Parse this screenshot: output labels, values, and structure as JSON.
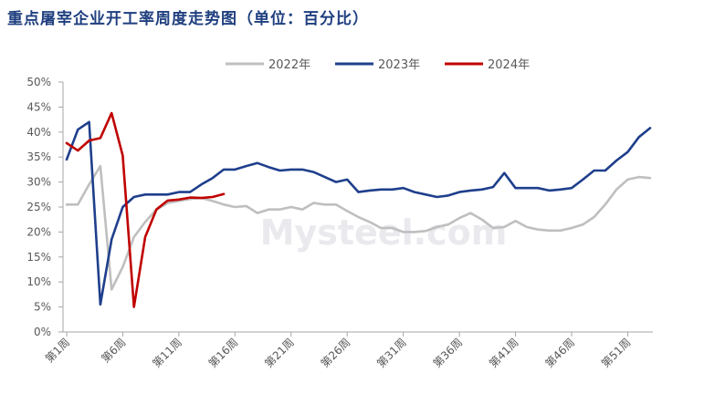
{
  "title": "重点屠宰企业开工率周度走势图（单位：百分比）",
  "watermark": "Mysteel.com",
  "colors": {
    "s2022": "#bfbfbf",
    "s2023": "#1f3f8c",
    "s2024": "#c00000",
    "title": "#1f3f7f",
    "axis": "#595959"
  },
  "chart_data": {
    "type": "line",
    "title": "重点屠宰企业开工率周度走势图（单位：百分比）",
    "xlabel": "",
    "ylabel": "",
    "ylim": [
      0,
      50
    ],
    "y_ticks": [
      "0%",
      "5%",
      "10%",
      "15%",
      "20%",
      "25%",
      "30%",
      "35%",
      "40%",
      "45%",
      "50%"
    ],
    "x_range": [
      1,
      53
    ],
    "x_tick_labels": [
      "第1周",
      "第6周",
      "第11周",
      "第16周",
      "第21周",
      "第26周",
      "第31周",
      "第36周",
      "第41周",
      "第46周",
      "第51周"
    ],
    "x_tick_weeks": [
      1,
      6,
      11,
      16,
      21,
      26,
      31,
      36,
      41,
      46,
      51
    ],
    "legend_position": "top-right",
    "grid": false,
    "series": [
      {
        "name": "2022年",
        "x": [
          1,
          2,
          3,
          4,
          5,
          6,
          7,
          8,
          9,
          10,
          11,
          12,
          13,
          14,
          15,
          16,
          17,
          18,
          19,
          20,
          21,
          22,
          23,
          24,
          25,
          26,
          27,
          28,
          29,
          30,
          31,
          32,
          33,
          34,
          35,
          36,
          37,
          38,
          39,
          40,
          41,
          42,
          43,
          44,
          45,
          46,
          47,
          48,
          49,
          50,
          51,
          52,
          53
        ],
        "values": [
          25.5,
          25.5,
          29.5,
          33.2,
          8.5,
          13.0,
          19.0,
          22.0,
          24.5,
          25.8,
          26.2,
          26.6,
          26.8,
          26.2,
          25.5,
          25.0,
          25.2,
          23.8,
          24.5,
          24.5,
          25.0,
          24.5,
          25.8,
          25.5,
          25.5,
          24.2,
          23.0,
          22.0,
          20.8,
          20.8,
          20.0,
          20.0,
          20.2,
          21.0,
          21.5,
          22.8,
          23.8,
          22.5,
          20.8,
          21.0,
          22.2,
          21.0,
          20.5,
          20.3,
          20.3,
          20.8,
          21.5,
          23.0,
          25.5,
          28.5,
          30.5,
          31.0,
          30.8
        ]
      },
      {
        "name": "2023年",
        "x": [
          1,
          2,
          3,
          4,
          5,
          6,
          7,
          8,
          9,
          10,
          11,
          12,
          13,
          14,
          15,
          16,
          17,
          18,
          19,
          20,
          21,
          22,
          23,
          24,
          25,
          26,
          27,
          28,
          29,
          30,
          31,
          32,
          33,
          34,
          35,
          36,
          37,
          38,
          39,
          40,
          41,
          42,
          43,
          44,
          45,
          46,
          47,
          48,
          49,
          50,
          51,
          52,
          53
        ],
        "values": [
          34.5,
          40.5,
          42.0,
          5.5,
          18.5,
          25.0,
          27.0,
          27.5,
          27.5,
          27.5,
          28.0,
          28.0,
          29.5,
          30.8,
          32.5,
          32.5,
          33.2,
          33.8,
          33.0,
          32.3,
          32.5,
          32.5,
          32.0,
          31.0,
          30.0,
          30.5,
          28.0,
          28.3,
          28.5,
          28.5,
          28.8,
          28.0,
          27.5,
          27.0,
          27.3,
          28.0,
          28.3,
          28.5,
          29.0,
          31.8,
          28.8,
          28.8,
          28.8,
          28.3,
          28.5,
          28.8,
          30.5,
          32.3,
          32.3,
          34.3,
          36.0,
          39.0,
          40.8
        ]
      },
      {
        "name": "2024年",
        "x": [
          1,
          2,
          3,
          4,
          5,
          6,
          7,
          8,
          9,
          10,
          11,
          12,
          13,
          14,
          15
        ],
        "values": [
          37.8,
          36.3,
          38.3,
          38.8,
          43.8,
          35.3,
          5.0,
          19.0,
          24.5,
          26.3,
          26.5,
          26.9,
          26.8,
          27.0,
          27.6
        ]
      }
    ]
  }
}
